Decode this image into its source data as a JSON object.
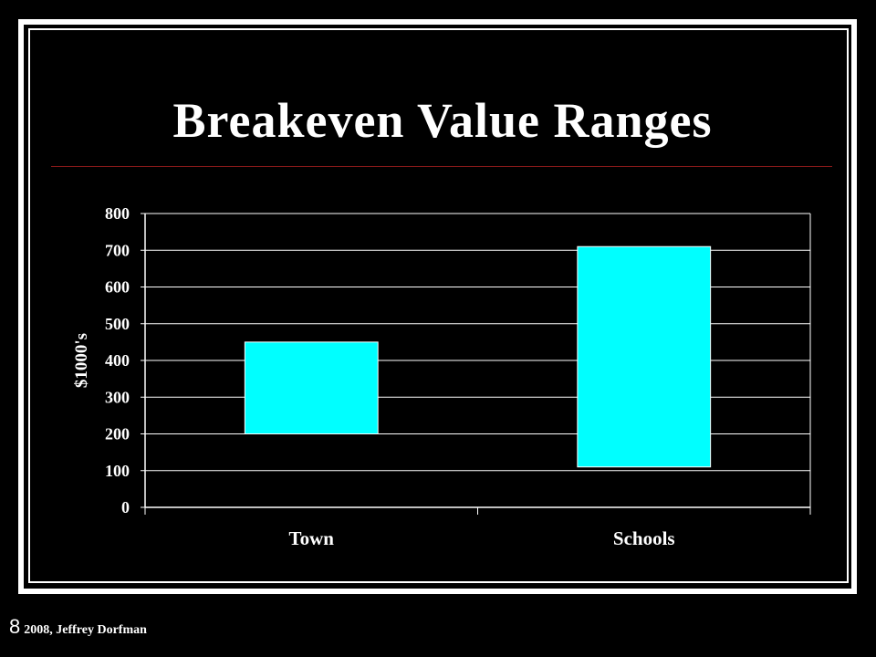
{
  "slide": {
    "title": "Breakeven Value Ranges",
    "footer_number": "8",
    "footer_text": "2008, Jeffrey Dorfman"
  },
  "colors": {
    "background": "#000000",
    "bars": "#00ffff",
    "axis": "#ffffff",
    "rule": "#8b1a1a"
  },
  "chart_data": {
    "type": "bar",
    "subtype": "floating-range",
    "categories": [
      "Town",
      "Schools"
    ],
    "series": [
      {
        "values": [
          [
            200,
            450
          ],
          [
            110,
            710
          ]
        ]
      }
    ],
    "ylabel": "$1000's",
    "xlabel": "",
    "ylim": [
      0,
      800
    ],
    "yticks": [
      0,
      100,
      200,
      300,
      400,
      500,
      600,
      700,
      800
    ],
    "grid": true,
    "legend": "none"
  }
}
